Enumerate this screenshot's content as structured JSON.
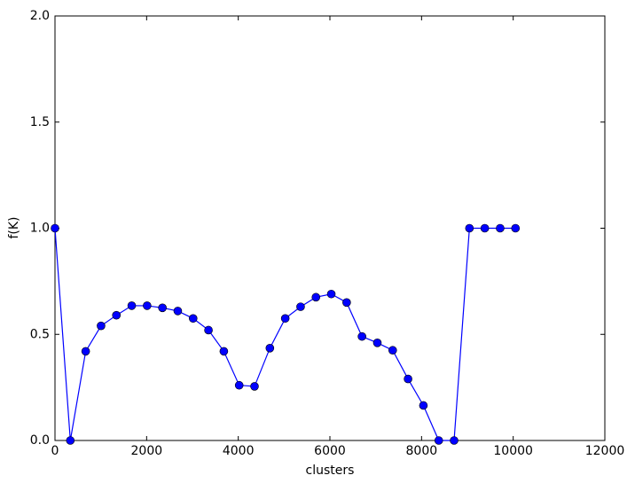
{
  "chart_data": {
    "type": "line",
    "xlabel": "clusters",
    "ylabel": "f(K)",
    "x": [
      0,
      335,
      670,
      1005,
      1340,
      1675,
      2010,
      2345,
      2680,
      3015,
      3350,
      3685,
      4020,
      4355,
      4690,
      5025,
      5360,
      5695,
      6030,
      6365,
      6700,
      7035,
      7370,
      7705,
      8040,
      8375,
      8710,
      9045,
      9380,
      9715,
      10050
    ],
    "series": [
      {
        "color": "#0000ff",
        "values": [
          1.0,
          0.0,
          0.42,
          0.54,
          0.59,
          0.635,
          0.635,
          0.625,
          0.61,
          0.575,
          0.52,
          0.42,
          0.26,
          0.255,
          0.435,
          0.575,
          0.63,
          0.675,
          0.69,
          0.65,
          0.49,
          0.46,
          0.425,
          0.29,
          0.165,
          0.0,
          0.0,
          1.0,
          1.0,
          1.0,
          1.0
        ]
      }
    ],
    "xlim": [
      0,
      12000
    ],
    "xticks": [
      0,
      2000,
      4000,
      6000,
      8000,
      10000,
      12000
    ],
    "ylim": [
      0,
      2
    ],
    "yticks": [
      {
        "value": 0,
        "label": "0.0"
      },
      {
        "value": 0.5,
        "label": "0.5"
      },
      {
        "value": 1,
        "label": "1.0"
      },
      {
        "value": 1.5,
        "label": "1.5"
      },
      {
        "value": 2,
        "label": "2.0"
      }
    ],
    "grid": false
  }
}
